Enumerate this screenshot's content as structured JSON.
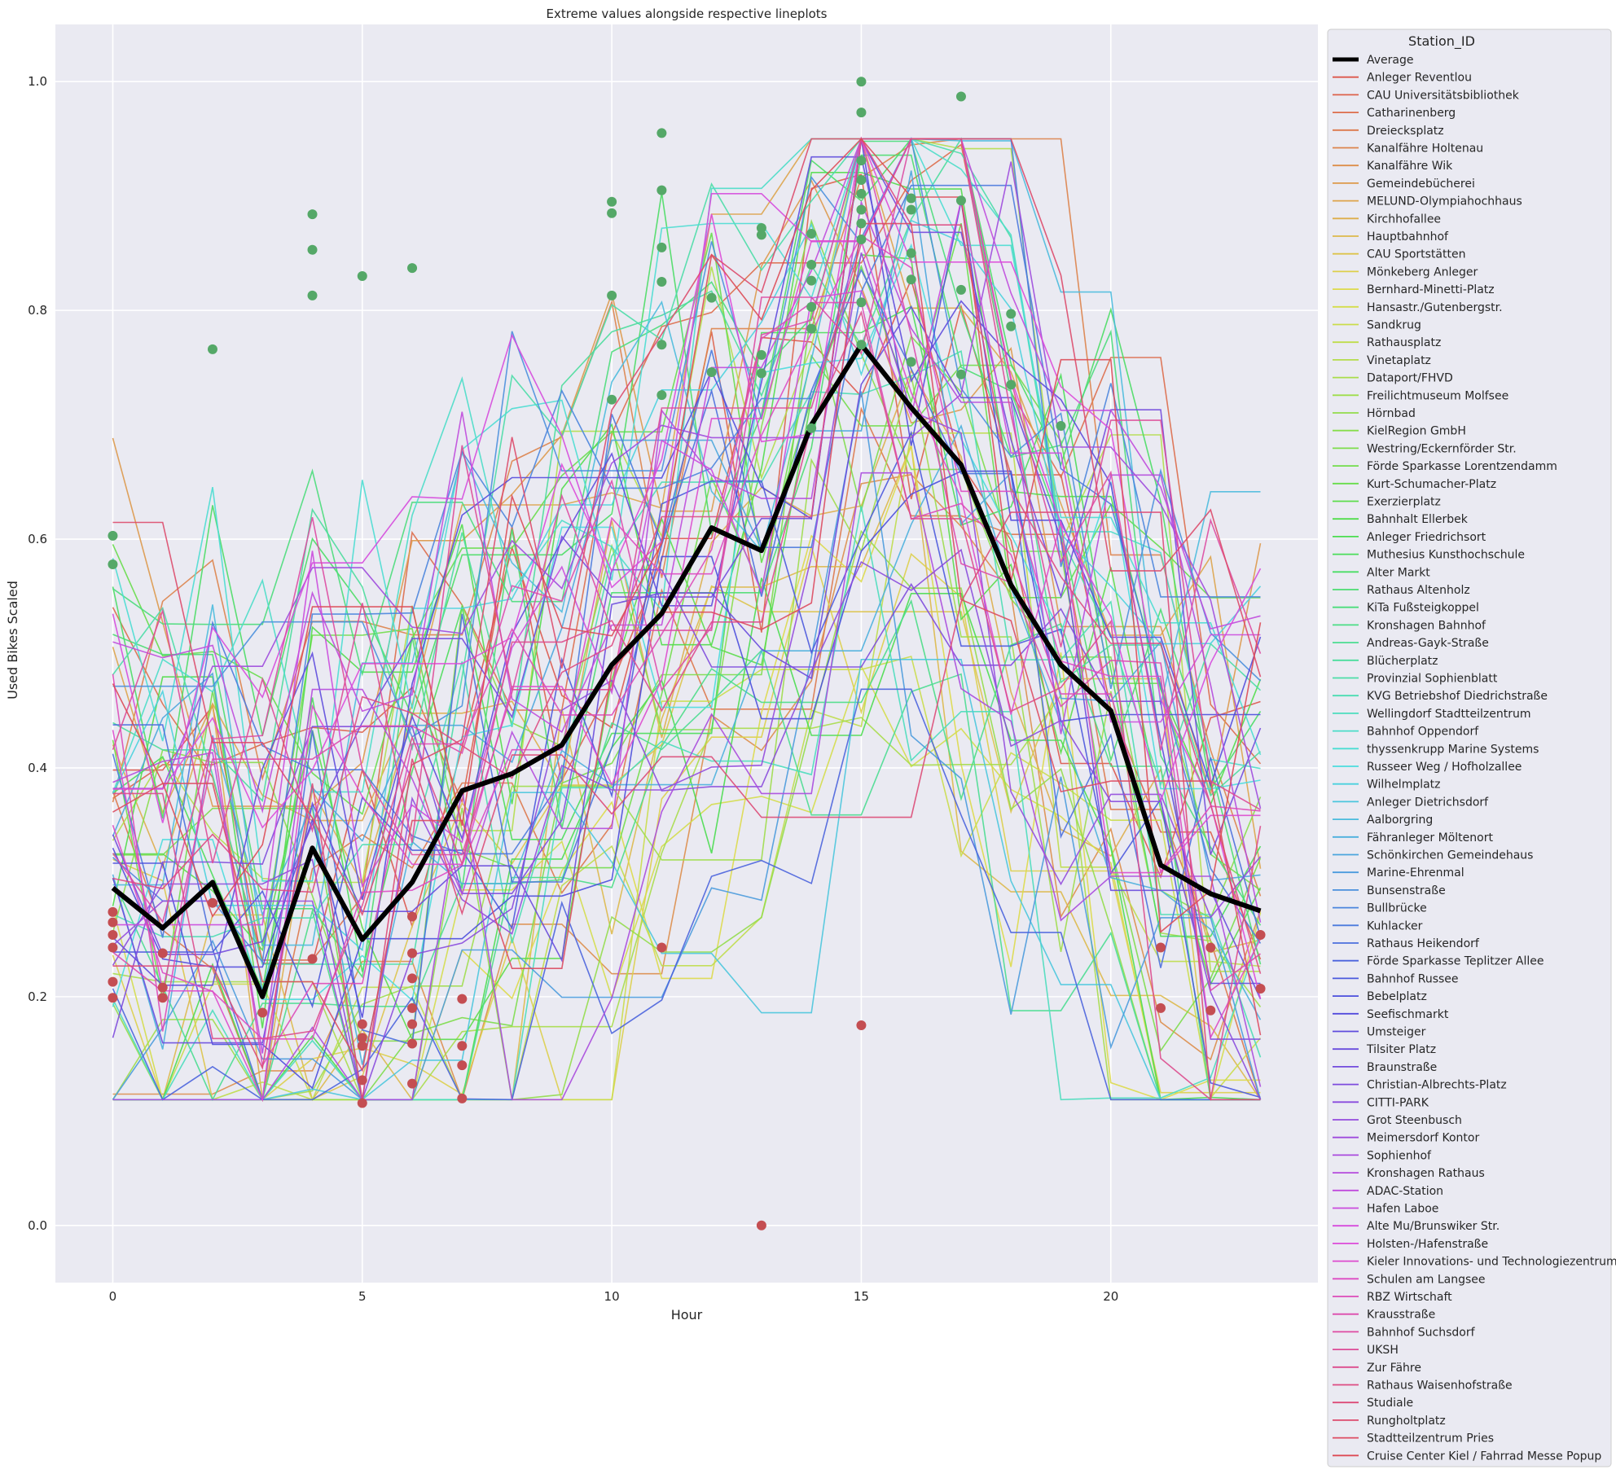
{
  "chart_data": {
    "type": "line",
    "title": "Extreme values alongside respective lineplots",
    "xlabel": "Hour",
    "ylabel": "Used Bikes Scaled",
    "xlim": [
      -1.15,
      24.15
    ],
    "ylim": [
      -0.05,
      1.05
    ],
    "xticks": [
      0,
      5,
      10,
      15,
      20
    ],
    "yticks": [
      0.0,
      0.2,
      0.4,
      0.6,
      0.8,
      1.0
    ],
    "grid": true,
    "legend": {
      "title": "Station_ID",
      "placement": "outside-right"
    },
    "colors": {
      "background": "#eaeaf2",
      "grid": "#ffffff",
      "average": "#000000",
      "max_marker": "#55a868",
      "min_marker": "#c44e52"
    },
    "x": [
      0,
      1,
      2,
      3,
      4,
      5,
      6,
      7,
      8,
      9,
      10,
      11,
      12,
      13,
      14,
      15,
      16,
      17,
      18,
      19,
      20,
      21,
      22,
      23
    ],
    "average": {
      "name": "Average",
      "values": [
        0.295,
        0.26,
        0.3,
        0.2,
        0.33,
        0.25,
        0.3,
        0.38,
        0.395,
        0.42,
        0.49,
        0.535,
        0.61,
        0.59,
        0.7,
        0.77,
        0.715,
        0.665,
        0.56,
        0.49,
        0.45,
        0.315,
        0.29,
        0.275
      ]
    },
    "stations": [
      "Anleger Reventlou",
      "CAU Universitätsbibliothek",
      "Catharinenberg",
      "Dreiecksplatz",
      "Kanalfähre Holtenau",
      "Kanalfähre Wik",
      "Gemeindebücherei",
      "MELUND-Olympiahochhaus",
      "Kirchhofallee",
      "Hauptbahnhof",
      "CAU Sportstätten",
      "Mönkeberg Anleger",
      "Bernhard-Minetti-Platz",
      "Hansastr./Gutenbergstr.",
      "Sandkrug",
      "Rathausplatz",
      "Vinetaplatz",
      "Dataport/FHVD",
      "Freilichtmuseum Molfsee",
      "Hörnbad",
      "KielRegion GmbH",
      "Westring/Eckernförder Str.",
      "Förde Sparkasse Lorentzendamm",
      "Kurt-Schumacher-Platz",
      "Exerzierplatz",
      "Bahnhalt Ellerbek",
      "Anleger Friedrichsort",
      "Muthesius Kunsthochschule",
      "Alter Markt",
      "Rathaus Altenholz",
      "KiTa Fußsteigkoppel",
      "Kronshagen Bahnhof",
      "Andreas-Gayk-Straße",
      "Blücherplatz",
      "Provinzial Sophienblatt",
      "KVG Betriebshof Diedrichstraße",
      "Wellingdorf Stadtteilzentrum",
      "Bahnhof Oppendorf",
      "thyssenkrupp Marine Systems",
      "Russeer Weg / Hofholzallee",
      "Wilhelmplatz",
      "Anleger Dietrichsdorf",
      "Aalborgring",
      "Fähranleger Möltenort",
      "Schönkirchen Gemeindehaus",
      "Marine-Ehrenmal",
      "Bunsenstraße",
      "Bullbrücke",
      "Kuhlacker",
      "Rathaus Heikendorf",
      "Förde Sparkasse Teplitzer Allee",
      "Bahnhof Russee",
      "Bebelplatz",
      "Seefischmarkt",
      "Umsteiger",
      "Tilsiter Platz",
      "Braunstraße",
      "Christian-Albrechts-Platz",
      "CITTI-PARK",
      "Grot Steenbusch",
      "Meimersdorf Kontor",
      "Sophienhof",
      "Kronshagen Rathaus",
      "ADAC-Station",
      "Hafen Laboe",
      "Alte Mu/Brunswiker Str.",
      "Holsten-/Hafenstraße",
      "Kieler Innovations- und Technologiezentrum",
      "Schulen am Langsee",
      "RBZ Wirtschaft",
      "Krausstraße",
      "Bahnhof Suchsdorf",
      "UKSH",
      "Zur Fähre",
      "Rathaus Waisenhofstraße",
      "Studiale",
      "Rungholtplatz",
      "Stadtteilzentrum Pries",
      "Cruise Center Kiel / Fahrrad Messe Popup"
    ],
    "max_points": [
      [
        0,
        0.603
      ],
      [
        0,
        0.578
      ],
      [
        2,
        0.766
      ],
      [
        4,
        0.884
      ],
      [
        4,
        0.853
      ],
      [
        4,
        0.813
      ],
      [
        5,
        0.83
      ],
      [
        6,
        0.837
      ],
      [
        10,
        0.895
      ],
      [
        10,
        0.885
      ],
      [
        10,
        0.813
      ],
      [
        10,
        0.722
      ],
      [
        11,
        0.955
      ],
      [
        11,
        0.905
      ],
      [
        11,
        0.855
      ],
      [
        11,
        0.825
      ],
      [
        11,
        0.77
      ],
      [
        11,
        0.726
      ],
      [
        12,
        0.811
      ],
      [
        12,
        0.746
      ],
      [
        13,
        0.872
      ],
      [
        13,
        0.866
      ],
      [
        13,
        0.761
      ],
      [
        13,
        0.745
      ],
      [
        14,
        0.867
      ],
      [
        14,
        0.84
      ],
      [
        14,
        0.826
      ],
      [
        14,
        0.803
      ],
      [
        14,
        0.784
      ],
      [
        14,
        0.697
      ],
      [
        15,
        1.0
      ],
      [
        15,
        0.973
      ],
      [
        15,
        0.931
      ],
      [
        15,
        0.914
      ],
      [
        15,
        0.902
      ],
      [
        15,
        0.888
      ],
      [
        15,
        0.876
      ],
      [
        15,
        0.862
      ],
      [
        15,
        0.807
      ],
      [
        15,
        0.77
      ],
      [
        16,
        0.898
      ],
      [
        16,
        0.888
      ],
      [
        16,
        0.85
      ],
      [
        16,
        0.827
      ],
      [
        16,
        0.755
      ],
      [
        17,
        0.987
      ],
      [
        17,
        0.896
      ],
      [
        17,
        0.818
      ],
      [
        17,
        0.744
      ],
      [
        18,
        0.797
      ],
      [
        18,
        0.786
      ],
      [
        18,
        0.735
      ],
      [
        19,
        0.699
      ]
    ],
    "min_points": [
      [
        0,
        0.274
      ],
      [
        0,
        0.265
      ],
      [
        0,
        0.254
      ],
      [
        0,
        0.243
      ],
      [
        0,
        0.213
      ],
      [
        0,
        0.199
      ],
      [
        1,
        0.238
      ],
      [
        1,
        0.208
      ],
      [
        1,
        0.199
      ],
      [
        2,
        0.282
      ],
      [
        3,
        0.186
      ],
      [
        4,
        0.233
      ],
      [
        5,
        0.176
      ],
      [
        5,
        0.164
      ],
      [
        5,
        0.157
      ],
      [
        5,
        0.127
      ],
      [
        5,
        0.107
      ],
      [
        6,
        0.27
      ],
      [
        6,
        0.238
      ],
      [
        6,
        0.216
      ],
      [
        6,
        0.19
      ],
      [
        6,
        0.176
      ],
      [
        6,
        0.159
      ],
      [
        6,
        0.124
      ],
      [
        7,
        0.198
      ],
      [
        7,
        0.157
      ],
      [
        7,
        0.14
      ],
      [
        7,
        0.111
      ],
      [
        11,
        0.243
      ],
      [
        13,
        0.0
      ],
      [
        15,
        0.175
      ],
      [
        21,
        0.243
      ],
      [
        21,
        0.19
      ],
      [
        22,
        0.243
      ],
      [
        22,
        0.188
      ],
      [
        23,
        0.254
      ],
      [
        23,
        0.207
      ]
    ]
  }
}
